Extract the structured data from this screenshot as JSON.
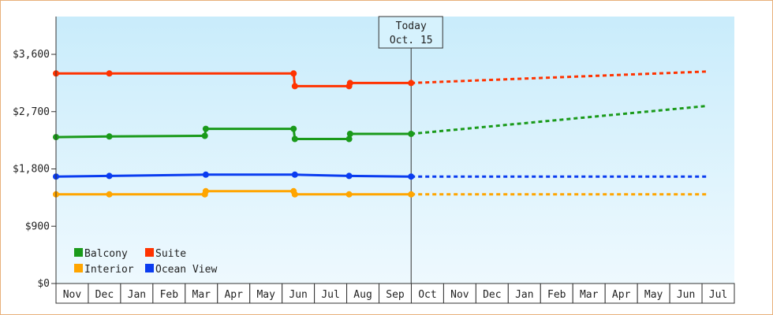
{
  "chart_data": {
    "type": "line",
    "title": "",
    "xlabel": "",
    "ylabel": "",
    "ylim": [
      0,
      4500
    ],
    "y_ticks": [
      {
        "value": 0,
        "label": "$0"
      },
      {
        "value": 900,
        "label": "$900"
      },
      {
        "value": 1800,
        "label": "$1,800"
      },
      {
        "value": 2700,
        "label": "$2,700"
      },
      {
        "value": 3600,
        "label": "$3,600"
      }
    ],
    "x_months": [
      "Nov",
      "Dec",
      "Jan",
      "Feb",
      "Mar",
      "Apr",
      "May",
      "Jun",
      "Jul",
      "Aug",
      "Sep",
      "Oct",
      "Nov",
      "Dec",
      "Jan",
      "Feb",
      "Mar",
      "Apr",
      "May",
      "Jun",
      "Jul"
    ],
    "today": {
      "line1": "Today",
      "line2": "Oct. 15",
      "x": 11.45
    },
    "grid": false,
    "legend_position": "bottom-left",
    "background_colors": [
      "#c9ecfb",
      "#eef9fe"
    ],
    "series": [
      {
        "name": "Balcony",
        "color": "#1a9a1a",
        "actual": [
          [
            0.0,
            2300
          ],
          [
            1.72,
            2310
          ],
          [
            4.8,
            2320
          ],
          [
            4.83,
            2430
          ],
          [
            7.66,
            2430
          ],
          [
            7.7,
            2270
          ],
          [
            9.45,
            2270
          ],
          [
            9.48,
            2350
          ],
          [
            11.45,
            2350
          ]
        ],
        "forecast": [
          [
            11.45,
            2350
          ],
          [
            21.0,
            2790
          ]
        ]
      },
      {
        "name": "Suite",
        "color": "#ff3300",
        "actual": [
          [
            0.0,
            3300
          ],
          [
            1.72,
            3300
          ],
          [
            7.66,
            3300
          ],
          [
            7.7,
            3100
          ],
          [
            9.45,
            3100
          ],
          [
            9.48,
            3150
          ],
          [
            11.45,
            3150
          ]
        ],
        "forecast": [
          [
            11.45,
            3150
          ],
          [
            21.0,
            3330
          ]
        ]
      },
      {
        "name": "Interior",
        "color": "#ffa500",
        "actual": [
          [
            0.0,
            1400
          ],
          [
            1.72,
            1400
          ],
          [
            4.8,
            1400
          ],
          [
            4.83,
            1450
          ],
          [
            7.66,
            1450
          ],
          [
            7.7,
            1400
          ],
          [
            9.45,
            1400
          ],
          [
            11.45,
            1400
          ]
        ],
        "forecast": [
          [
            11.45,
            1400
          ],
          [
            21.0,
            1400
          ]
        ]
      },
      {
        "name": "Ocean View",
        "color": "#0a3cf0",
        "actual": [
          [
            0.0,
            1680
          ],
          [
            1.72,
            1690
          ],
          [
            4.83,
            1710
          ],
          [
            7.7,
            1710
          ],
          [
            9.45,
            1690
          ],
          [
            11.45,
            1680
          ]
        ],
        "forecast": [
          [
            11.45,
            1680
          ],
          [
            21.0,
            1680
          ]
        ]
      }
    ],
    "markers": {
      "Balcony": [
        0.0,
        1.72,
        4.8,
        4.83,
        7.66,
        7.7,
        9.45,
        9.48,
        11.45
      ],
      "Suite": [
        0.0,
        1.72,
        7.66,
        7.7,
        9.45,
        9.48,
        11.45
      ],
      "Interior": [
        0.0,
        1.72,
        4.8,
        4.83,
        7.66,
        7.7,
        9.45,
        11.45
      ],
      "Ocean View": [
        0.0,
        1.72,
        4.83,
        7.7,
        9.45,
        11.45
      ]
    }
  }
}
